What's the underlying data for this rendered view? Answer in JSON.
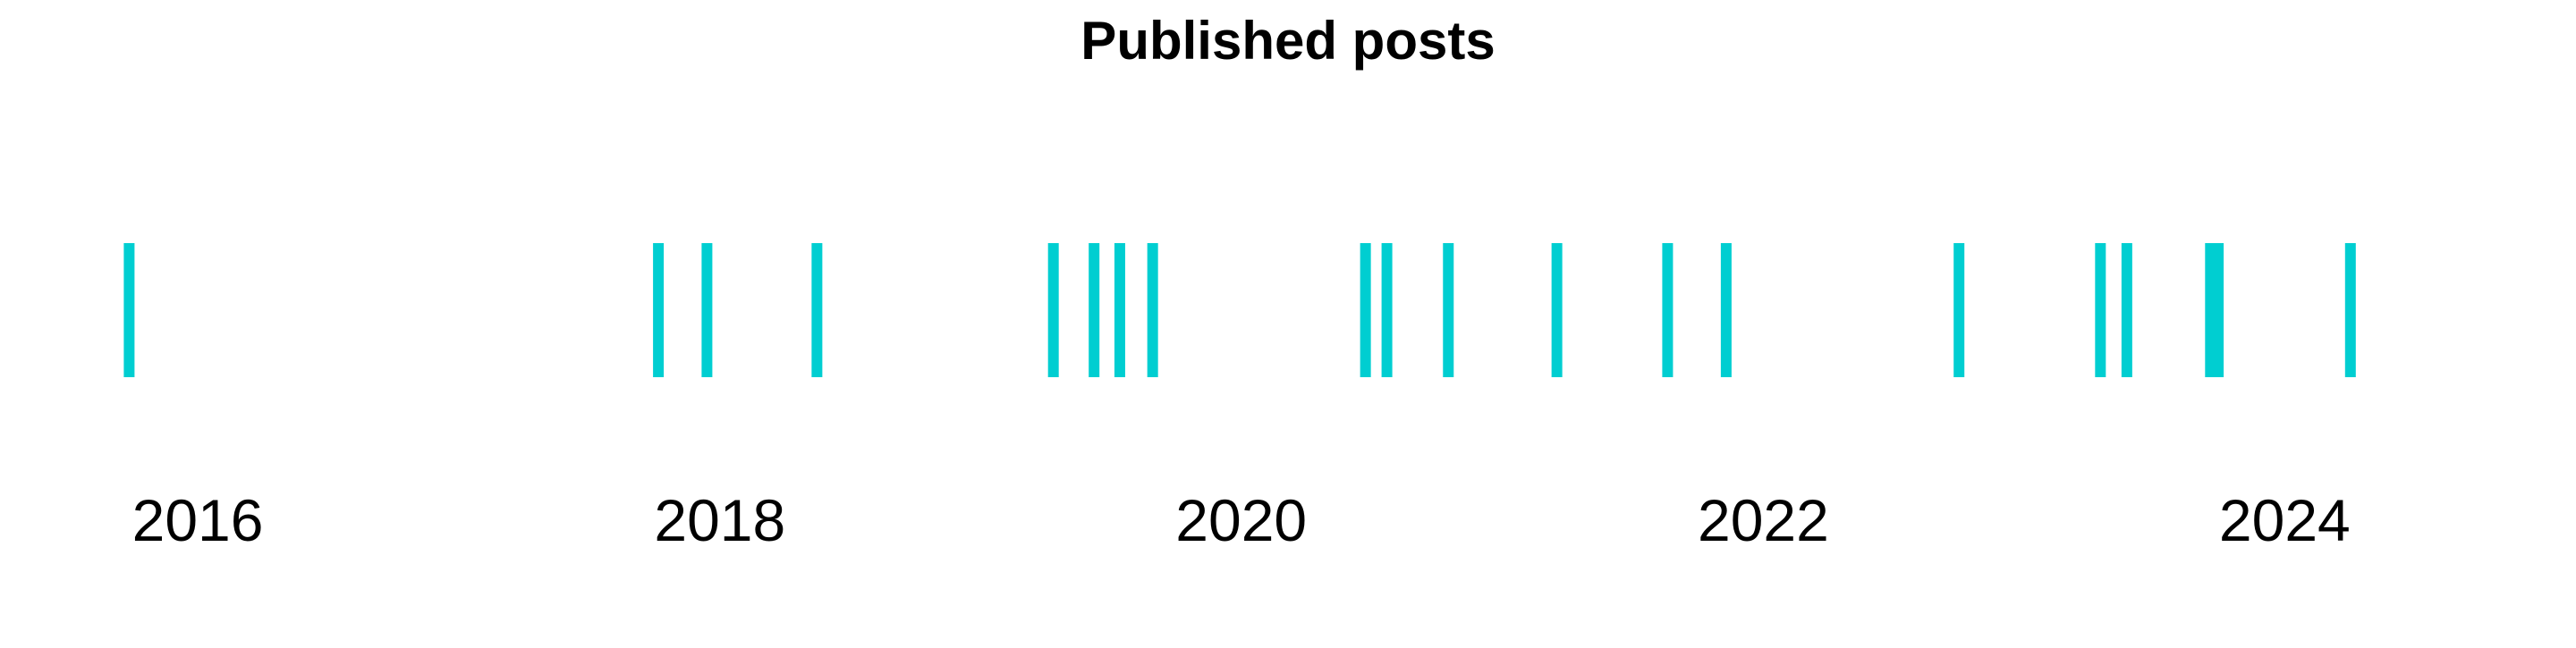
{
  "chart_data": {
    "type": "rug",
    "title": "Published posts",
    "xlabel": "",
    "ylabel": "",
    "x_axis": {
      "type": "date",
      "range": [
        "2015-05-13",
        "2024-12-30"
      ],
      "tick_labels": [
        "2016",
        "2018",
        "2020",
        "2022",
        "2024"
      ],
      "tick_values": [
        "2016-01-01",
        "2018-01-01",
        "2020-01-01",
        "2022-01-01",
        "2024-01-01"
      ]
    },
    "grid": false,
    "legend": "none",
    "color": "#00CED1",
    "series": [
      {
        "x": [
          "2015-09-27",
          "2017-10-07",
          "2017-12-14",
          "2018-05-17",
          "2019-04-13",
          "2019-06-09",
          "2019-07-15",
          "2019-08-30",
          "2020-06-23",
          "2020-07-23",
          "2020-10-17",
          "2021-03-18",
          "2021-08-20",
          "2021-11-10",
          "2022-10-02",
          "2023-04-18",
          "2023-05-25",
          "2023-09-19",
          "2023-09-30",
          "2024-04-02"
        ]
      }
    ]
  }
}
